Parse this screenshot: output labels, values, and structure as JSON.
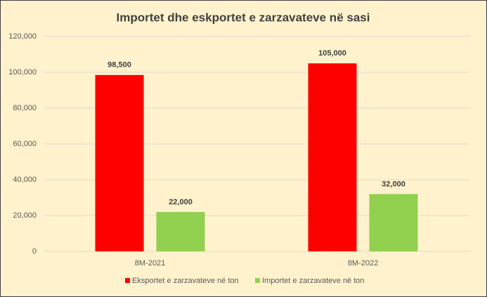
{
  "chart_data": {
    "type": "bar",
    "title": "Importet dhe eskportet e zarzavateve në sasi",
    "categories": [
      "8M-2021",
      "8M-2022"
    ],
    "series": [
      {
        "name": "Eksportet e zarzavateve në ton",
        "color": "#ff0000",
        "values": [
          98500,
          105000
        ],
        "value_labels": [
          "98,500",
          "105,000"
        ]
      },
      {
        "name": "Importet e zarzavateve në ton",
        "color": "#92d050",
        "values": [
          22000,
          32000
        ],
        "value_labels": [
          "22,000",
          "32,000"
        ]
      }
    ],
    "ylim": [
      0,
      120000
    ],
    "yticks": [
      0,
      {
        "value": 20000,
        "label": "20,000"
      },
      {
        "value": 40000,
        "label": "40,000"
      },
      {
        "value": 60000,
        "label": "60,000"
      },
      {
        "value": 80000,
        "label": "80,000"
      },
      {
        "value": 100000,
        "label": "100,000"
      },
      {
        "value": 120000,
        "label": "120,000"
      }
    ],
    "grid": true,
    "legend": "bottom"
  }
}
